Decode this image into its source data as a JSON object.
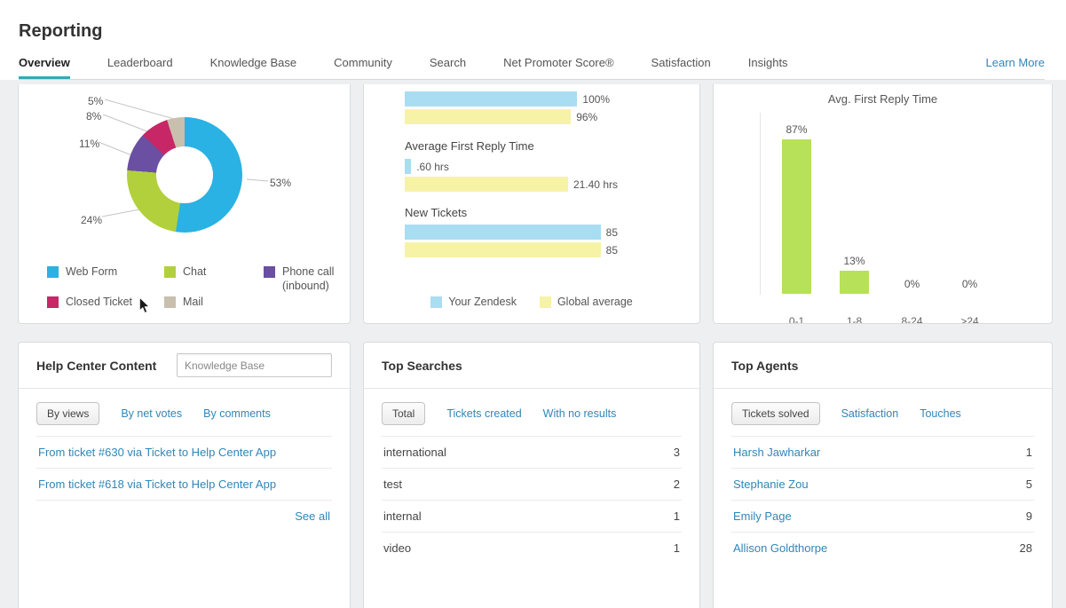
{
  "header": {
    "title": "Reporting",
    "learn_more_label": "Learn More"
  },
  "tabs": [
    {
      "label": "Overview",
      "active": true
    },
    {
      "label": "Leaderboard"
    },
    {
      "label": "Knowledge Base"
    },
    {
      "label": "Community"
    },
    {
      "label": "Search"
    },
    {
      "label": "Net Promoter Score®"
    },
    {
      "label": "Satisfaction"
    },
    {
      "label": "Insights"
    }
  ],
  "colors": {
    "accent_teal": "#35a8b5",
    "link_blue": "#3086b8",
    "bar_blue": "#a8ddf2",
    "bar_yellow": "#f7f3a6",
    "bar_green": "#b7e158"
  },
  "channels_card": {
    "chart_data": {
      "type": "donut",
      "slices": [
        {
          "label": "Web Form",
          "value": 53,
          "pct_label": "53%",
          "color": "#29b2e3"
        },
        {
          "label": "Chat",
          "value": 24,
          "pct_label": "24%",
          "color": "#b2d03c"
        },
        {
          "label": "Phone call (inbound)",
          "value": 11,
          "pct_label": "11%",
          "color": "#6a4fa2"
        },
        {
          "label": "Closed Ticket",
          "value": 8,
          "pct_label": "8%",
          "color": "#c72767"
        },
        {
          "label": "Mail",
          "value": 5,
          "pct_label": "5%",
          "color": "#c8bfae"
        }
      ]
    }
  },
  "benchmark_card": {
    "chart_data": {
      "type": "bar",
      "orientation": "horizontal",
      "series": [
        "Your Zendesk",
        "Global average"
      ],
      "groups": [
        {
          "label": "",
          "your_zendesk": "100%",
          "global_average": "96%",
          "widths": [
            81,
            78
          ]
        },
        {
          "label": "Average First Reply Time",
          "your_zendesk": ".60 hrs",
          "global_average": "21.40 hrs",
          "widths": [
            3,
            80
          ]
        },
        {
          "label": "New Tickets",
          "your_zendesk": "85",
          "global_average": "85",
          "widths": [
            96,
            96
          ]
        }
      ]
    },
    "legend": [
      {
        "label": "Your Zendesk"
      },
      {
        "label": "Global average"
      }
    ]
  },
  "reply_card": {
    "chart_data": {
      "type": "bar",
      "title": "Avg. First Reply Time",
      "categories": [
        "0-1",
        "1-8",
        "8-24",
        ">24"
      ],
      "values": [
        87,
        13,
        0,
        0
      ],
      "value_labels": [
        "87%",
        "13%",
        "0%",
        "0%"
      ],
      "ylim": [
        0,
        100
      ]
    }
  },
  "help_center_card": {
    "title": "Help Center Content",
    "filter_value": "Knowledge Base",
    "tabs": [
      {
        "label": "By views",
        "active": true
      },
      {
        "label": "By net votes"
      },
      {
        "label": "By comments"
      }
    ],
    "links": [
      "From ticket #630 via Ticket to Help Center App",
      "From ticket #618 via Ticket to Help Center App"
    ],
    "see_all_label": "See all"
  },
  "top_searches_card": {
    "title": "Top Searches",
    "tabs": [
      {
        "label": "Total",
        "active": true
      },
      {
        "label": "Tickets created"
      },
      {
        "label": "With no results"
      }
    ],
    "rows": [
      {
        "term": "international",
        "count": "3"
      },
      {
        "term": "test",
        "count": "2"
      },
      {
        "term": "internal",
        "count": "1"
      },
      {
        "term": "video",
        "count": "1"
      }
    ]
  },
  "top_agents_card": {
    "title": "Top Agents",
    "tabs": [
      {
        "label": "Tickets solved",
        "active": true
      },
      {
        "label": "Satisfaction"
      },
      {
        "label": "Touches"
      }
    ],
    "rows": [
      {
        "name": "Harsh Jawharkar",
        "count": "1"
      },
      {
        "name": "Stephanie Zou",
        "count": "5"
      },
      {
        "name": "Emily Page",
        "count": "9"
      },
      {
        "name": "Allison Goldthorpe",
        "count": "28"
      }
    ]
  }
}
